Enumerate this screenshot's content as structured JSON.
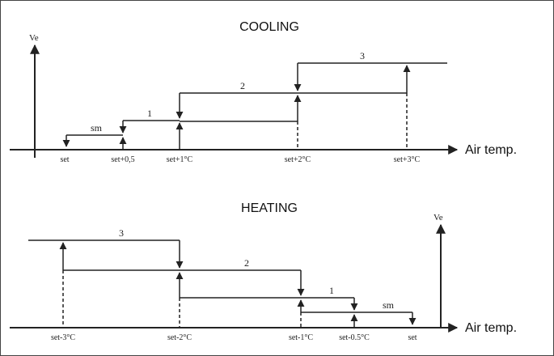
{
  "cooling": {
    "title": "COOLING",
    "y_label": "Ve",
    "x_label": "Air temp.",
    "ticks": [
      "set",
      "set+0,5",
      "set+1°C",
      "set+2°C",
      "set+3°C"
    ],
    "steps": [
      "sm",
      "1",
      "2",
      "3"
    ]
  },
  "heating": {
    "title": "HEATING",
    "y_label": "Ve",
    "x_label": "Air temp.",
    "ticks": [
      "set-3°C",
      "set-2°C",
      "set-1°C",
      "set-0.5°C",
      "set"
    ],
    "steps": [
      "3",
      "2",
      "1",
      "sm"
    ]
  },
  "colors": {
    "line": "#222222",
    "background": "#ffffff",
    "border": "#444444"
  }
}
